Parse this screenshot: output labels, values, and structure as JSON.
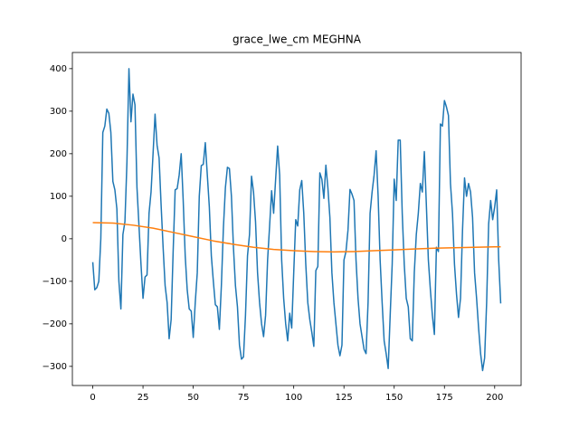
{
  "chart_data": {
    "type": "line",
    "title": "grace_lwe_cm MEGHNA",
    "x": [
      0,
      1,
      2,
      3,
      4,
      5,
      6,
      7,
      8,
      9,
      10,
      11,
      12,
      13,
      14,
      15,
      16,
      17,
      18,
      19,
      20,
      21,
      22,
      23,
      24,
      25,
      26,
      27,
      28,
      29,
      30,
      31,
      32,
      33,
      34,
      35,
      36,
      37,
      38,
      39,
      40,
      41,
      42,
      43,
      44,
      45,
      46,
      47,
      48,
      49,
      50,
      51,
      52,
      53,
      54,
      55,
      56,
      57,
      58,
      59,
      60,
      61,
      62,
      63,
      64,
      65,
      66,
      67,
      68,
      69,
      70,
      71,
      72,
      73,
      74,
      75,
      76,
      77,
      78,
      79,
      80,
      81,
      82,
      83,
      84,
      85,
      86,
      87,
      88,
      89,
      90,
      91,
      92,
      93,
      94,
      95,
      96,
      97,
      98,
      99,
      100,
      101,
      102,
      103,
      104,
      105,
      106,
      107,
      108,
      109,
      110,
      111,
      112,
      113,
      114,
      115,
      116,
      117,
      118,
      119,
      120,
      121,
      122,
      123,
      124,
      125,
      126,
      127,
      128,
      129,
      130,
      131,
      132,
      133,
      134,
      135,
      136,
      137,
      138,
      139,
      140,
      141,
      142,
      143,
      144,
      145,
      146,
      147,
      148,
      149,
      150,
      151,
      152,
      153,
      154,
      155,
      156,
      157,
      158,
      159,
      160,
      161,
      162,
      163,
      164,
      165,
      166,
      167,
      168,
      169,
      170,
      171,
      172,
      173,
      174,
      175,
      176,
      177,
      178,
      179,
      180,
      181,
      182,
      183,
      184,
      185,
      186,
      187,
      188,
      189,
      190,
      191,
      192,
      193,
      194,
      195,
      196,
      197,
      198,
      199,
      200,
      201,
      202,
      203
    ],
    "series": [
      {
        "color": "#1f77b4",
        "values": [
          -55,
          -120,
          -115,
          -100,
          0,
          250,
          265,
          305,
          295,
          250,
          135,
          115,
          70,
          -100,
          -165,
          10,
          40,
          180,
          400,
          275,
          340,
          315,
          120,
          30,
          -60,
          -140,
          -90,
          -85,
          60,
          110,
          200,
          293,
          220,
          190,
          80,
          -20,
          -110,
          -150,
          -235,
          -190,
          -30,
          115,
          118,
          150,
          200,
          90,
          -40,
          -120,
          -165,
          -170,
          -232,
          -150,
          -80,
          100,
          172,
          175,
          226,
          150,
          75,
          -40,
          -100,
          -155,
          -160,
          -213,
          -110,
          25,
          120,
          168,
          165,
          100,
          -20,
          -110,
          -160,
          -250,
          -283,
          -278,
          -180,
          -40,
          10,
          147,
          110,
          40,
          -80,
          -150,
          -200,
          -230,
          -180,
          -50,
          30,
          113,
          60,
          140,
          218,
          150,
          -50,
          -140,
          -200,
          -240,
          -175,
          -210,
          -80,
          45,
          30,
          115,
          137,
          60,
          -60,
          -150,
          -190,
          -220,
          -253,
          -75,
          -65,
          155,
          140,
          95,
          173,
          120,
          50,
          -80,
          -150,
          -200,
          -250,
          -275,
          -250,
          -50,
          -30,
          20,
          116,
          105,
          90,
          -50,
          -140,
          -200,
          -230,
          -260,
          -270,
          -150,
          60,
          110,
          150,
          207,
          100,
          -50,
          -150,
          -240,
          -270,
          -305,
          -180,
          -60,
          140,
          90,
          232,
          232,
          60,
          -60,
          -140,
          -160,
          -235,
          -240,
          -80,
          10,
          60,
          130,
          110,
          205,
          80,
          -50,
          -120,
          -180,
          -225,
          -20,
          -30,
          270,
          265,
          325,
          310,
          290,
          130,
          60,
          -60,
          -130,
          -185,
          -140,
          20,
          143,
          100,
          130,
          110,
          50,
          -80,
          -140,
          -210,
          -270,
          -310,
          -280,
          -150,
          35,
          90,
          45,
          75,
          115,
          -50,
          -152
        ]
      },
      {
        "color": "#ff7f0e",
        "x": [
          0,
          10,
          20,
          30,
          40,
          50,
          60,
          70,
          80,
          90,
          100,
          110,
          120,
          130,
          140,
          150,
          160,
          170,
          180,
          190,
          200,
          203
        ],
        "values": [
          38,
          37,
          32,
          25,
          15,
          5,
          -5,
          -13,
          -20,
          -25,
          -28,
          -30,
          -31,
          -30,
          -28,
          -26,
          -24,
          -22,
          -21,
          -20,
          -19,
          -19
        ]
      }
    ],
    "xlim": [
      -10.15,
      213.15
    ],
    "ylim": [
      -345,
      438
    ],
    "xticks": [
      0,
      25,
      50,
      75,
      100,
      125,
      150,
      175,
      200
    ],
    "yticks": [
      {
        "value": -300,
        "label": "−300"
      },
      {
        "value": -200,
        "label": "−200"
      },
      {
        "value": -100,
        "label": "−100"
      },
      0,
      100,
      200,
      300,
      400
    ]
  }
}
